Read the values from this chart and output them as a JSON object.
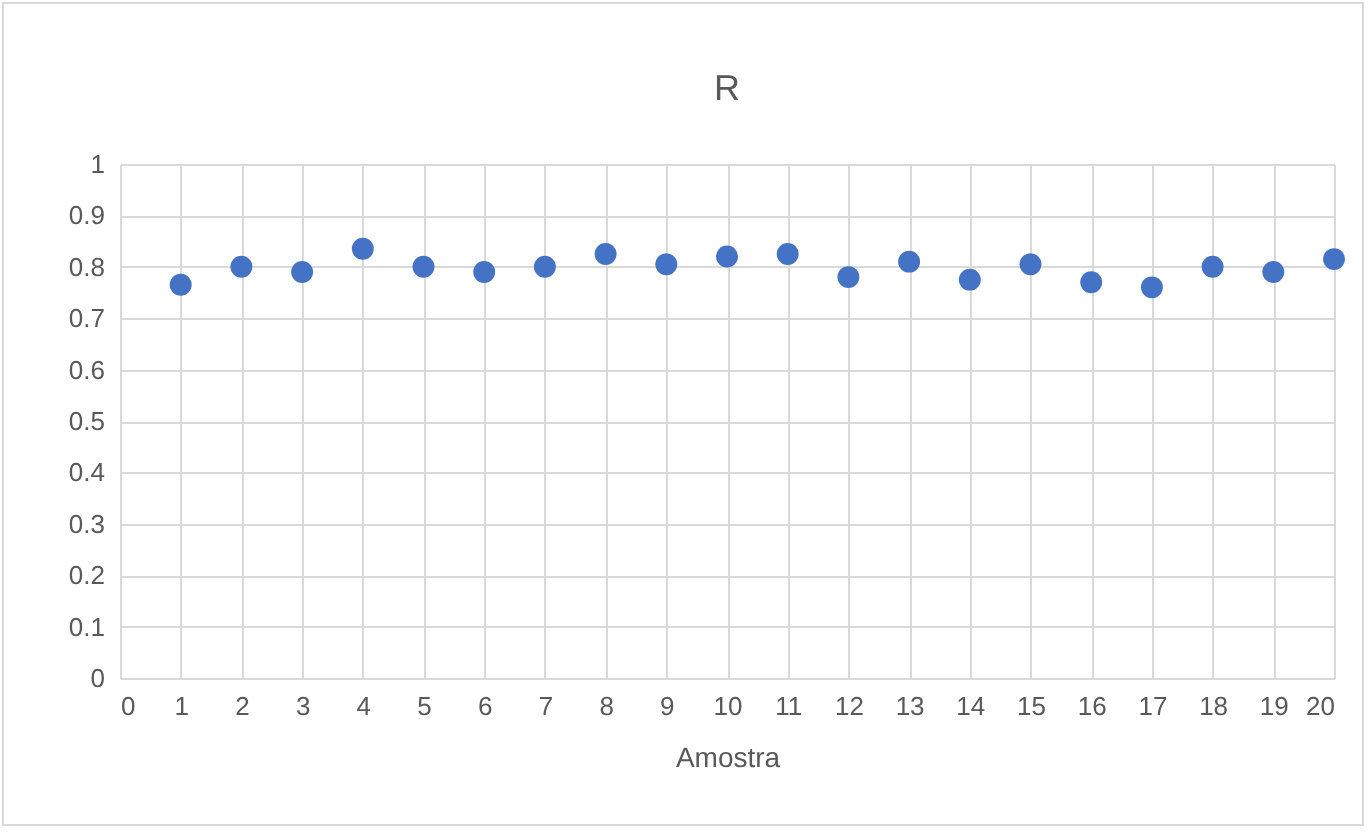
{
  "chart_data": {
    "type": "scatter",
    "title": "R",
    "xlabel": "Amostra",
    "x": [
      1,
      2,
      3,
      4,
      5,
      6,
      7,
      8,
      9,
      10,
      11,
      12,
      13,
      14,
      15,
      16,
      17,
      18,
      19,
      20
    ],
    "series": [
      {
        "color": "#4472c4",
        "values": [
          0.765,
          0.8,
          0.79,
          0.835,
          0.8,
          0.79,
          0.8,
          0.825,
          0.805,
          0.82,
          0.825,
          0.78,
          0.81,
          0.775,
          0.805,
          0.77,
          0.76,
          0.8,
          0.79,
          0.815
        ]
      }
    ],
    "xlim": [
      0,
      20
    ],
    "xticks": [
      0,
      1,
      2,
      3,
      4,
      5,
      6,
      7,
      8,
      9,
      10,
      11,
      12,
      13,
      14,
      15,
      16,
      17,
      18,
      19,
      20
    ],
    "ylim": [
      0,
      1
    ],
    "yticks": [
      0,
      0.1,
      0.2,
      0.3,
      0.4,
      0.5,
      0.6,
      0.7,
      0.8,
      0.9,
      1
    ],
    "grid": true,
    "marker": "circle"
  }
}
